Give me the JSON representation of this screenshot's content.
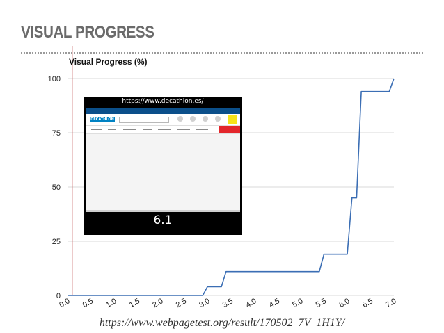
{
  "slide": {
    "title": "VISUAL PROGRESS",
    "source_link": "https://www.webpagetest.org/result/170502_7V_1H1Y/"
  },
  "thumbnail": {
    "url_label": "https://www.decathlon.es/",
    "logo_text": "DECATHLON",
    "time_label": "6.1"
  },
  "colors": {
    "line": "#3b6eb4",
    "grid": "#d9d9d9",
    "marker": "#c0504d",
    "axis_text": "#222222"
  },
  "chart_data": {
    "type": "line",
    "title": "Visual Progress (%)",
    "xlabel": "",
    "ylabel": "",
    "xlim": [
      0,
      7.0
    ],
    "ylim": [
      0,
      100
    ],
    "x_ticks": [
      "0.0",
      "0.5",
      "1.0",
      "1.5",
      "2.0",
      "2.5",
      "3.0",
      "3.5",
      "4.0",
      "4.5",
      "5.0",
      "5.5",
      "6.0",
      "6.5",
      "7.0"
    ],
    "y_ticks": [
      "0",
      "25",
      "50",
      "75",
      "100"
    ],
    "grid": true,
    "marker_x": 0.1,
    "series": [
      {
        "x": [
          0.0,
          2.9,
          3.0,
          3.3,
          3.4,
          5.4,
          5.5,
          6.0,
          6.1,
          6.2,
          6.3,
          6.4,
          6.9,
          7.0
        ],
        "y": [
          0,
          0,
          4,
          4,
          11,
          11,
          19,
          19,
          45,
          45,
          94,
          94,
          94,
          100
        ]
      }
    ]
  }
}
